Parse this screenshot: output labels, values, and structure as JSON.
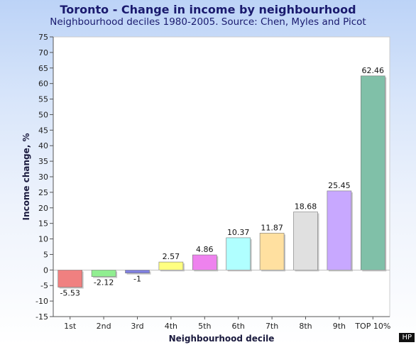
{
  "badge": "HP",
  "chart_data": {
    "type": "bar",
    "title": "Toronto - Change in income by neighbourhood",
    "subtitle": "Neighbourhood deciles 1980-2005. Source: Chen, Myles and Picot",
    "xlabel": "Neighbourhood decile",
    "ylabel": "Income change, %",
    "ylim": [
      -15,
      75
    ],
    "yticks": [
      -15,
      -10,
      -5,
      0,
      5,
      10,
      15,
      20,
      25,
      30,
      35,
      40,
      45,
      50,
      55,
      60,
      65,
      70,
      75
    ],
    "grid": false,
    "categories": [
      "1st",
      "2nd",
      "3rd",
      "4th",
      "5th",
      "6th",
      "7th",
      "8th",
      "9th",
      "TOP 10%"
    ],
    "values": [
      -5.53,
      -2.12,
      -1,
      2.57,
      4.86,
      10.37,
      11.87,
      18.68,
      25.45,
      62.46
    ],
    "value_labels": [
      "-5.53",
      "-2.12",
      "-1",
      "2.57",
      "4.86",
      "10.37",
      "11.87",
      "18.68",
      "25.45",
      "62.46"
    ],
    "colors": [
      "#f08080",
      "#90ee90",
      "#8080e0",
      "#ffff80",
      "#ee82ee",
      "#b0ffff",
      "#ffe0a0",
      "#e0e0e0",
      "#c8a8ff",
      "#80c0a8"
    ],
    "plot_background": "#ffffff"
  }
}
